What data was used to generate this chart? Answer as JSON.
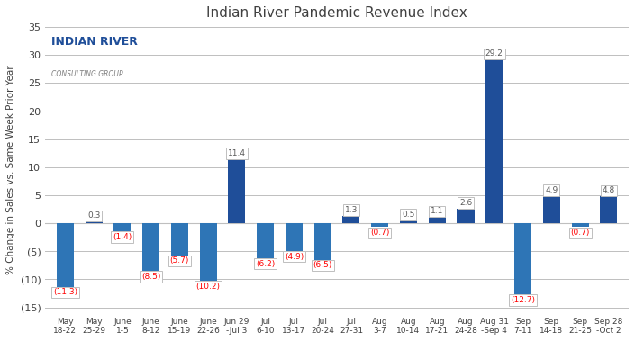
{
  "title": "Indian River Pandemic Revenue Index",
  "ylabel": "% Change in Sales vs. Same Week Prior Year",
  "categories": [
    "May\n18-22",
    "May\n25-29",
    "June\n1-5",
    "June\n8-12",
    "June\n15-19",
    "June\n22-26",
    "Jun 29\n-Jul 3",
    "Jul\n6-10",
    "Jul\n13-17",
    "Jul\n20-24",
    "Jul\n27-31",
    "Aug\n3-7",
    "Aug\n10-14",
    "Aug\n17-21",
    "Aug\n24-28",
    "Aug 31\n-Sep 4",
    "Sep\n7-11",
    "Sep\n14-18",
    "Sep\n21-25",
    "Sep 28\n-Oct 2"
  ],
  "values": [
    -11.3,
    0.3,
    -1.4,
    -8.5,
    -5.7,
    -10.2,
    11.4,
    -6.2,
    -4.9,
    -6.5,
    1.3,
    -0.7,
    0.5,
    1.1,
    2.6,
    29.2,
    -12.7,
    4.9,
    -0.7,
    4.8
  ],
  "bar_color_positive": "#1F4E99",
  "bar_color_negative": "#2E75B6",
  "ylim": [
    -16,
    35
  ],
  "yticks": [
    -15,
    -10,
    -5,
    0,
    5,
    10,
    15,
    20,
    25,
    30,
    35
  ],
  "label_color_positive": "#595959",
  "label_color_negative": "#FF0000",
  "background_color": "#FFFFFF",
  "grid_color": "#BFBFBF",
  "logo_text_river": "INDIAN RIVER",
  "logo_text_group": "CONSULTING GROUP"
}
